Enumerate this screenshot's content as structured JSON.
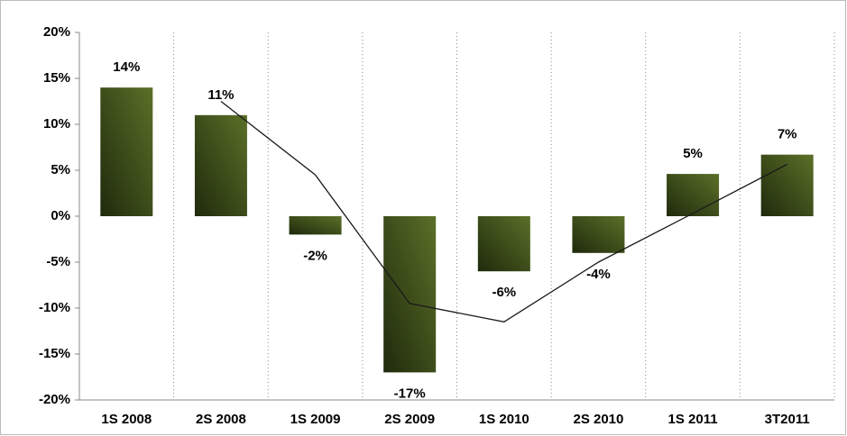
{
  "chart_data": {
    "type": "bar",
    "categories": [
      "1S 2008",
      "2S 2008",
      "1S 2009",
      "2S 2009",
      "1S 2010",
      "2S 2010",
      "1S 2011",
      "3T2011"
    ],
    "series": [
      {
        "type": "bar",
        "color": "#5b7028",
        "values": [
          14,
          11,
          -2,
          -17,
          -6,
          -4,
          4.6,
          6.7
        ],
        "value_labels": [
          "14%",
          "11%",
          "-2%",
          "-17%",
          "-6%",
          "-4%",
          "5%",
          "7%"
        ]
      },
      {
        "type": "line",
        "color": "#1a1a1a",
        "values": [
          null,
          12.5,
          4.5,
          -9.5,
          -11.5,
          -5,
          0.3,
          5.65
        ]
      }
    ],
    "ylim": [
      -20,
      20
    ],
    "yticks": [
      {
        "value": -20,
        "label": "-20%"
      },
      {
        "value": -15,
        "label": "-15%"
      },
      {
        "value": -10,
        "label": "-10%"
      },
      {
        "value": -5,
        "label": "-5%"
      },
      {
        "value": 0,
        "label": "0%"
      },
      {
        "value": 5,
        "label": "5%"
      },
      {
        "value": 10,
        "label": "10%"
      },
      {
        "value": 15,
        "label": "15%"
      },
      {
        "value": 20,
        "label": "20%"
      }
    ],
    "grid": "vertical-dotted"
  }
}
